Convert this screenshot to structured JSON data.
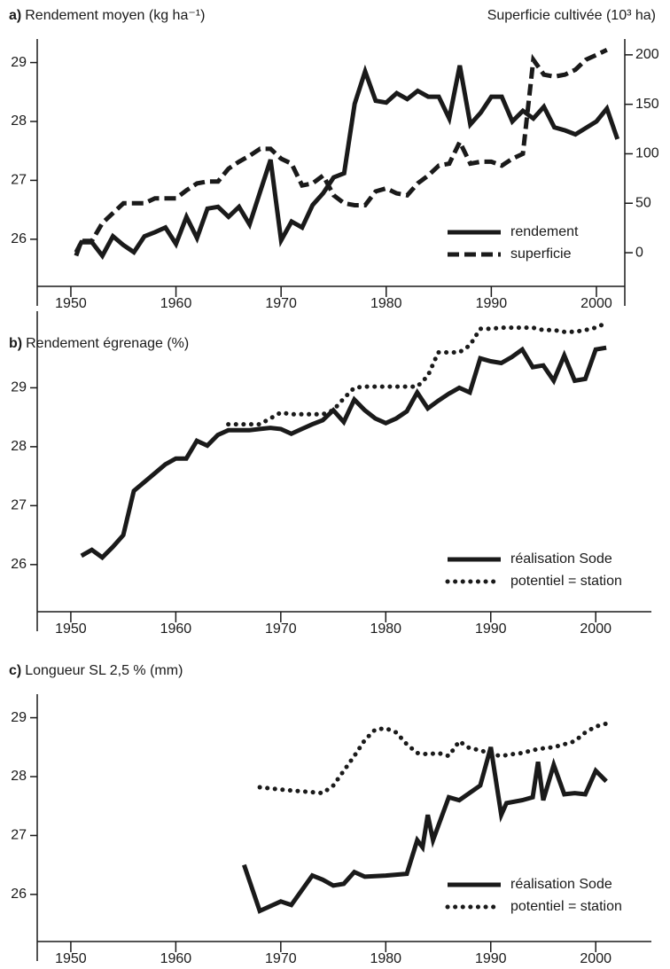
{
  "chart_data": [
    {
      "type": "line",
      "label": "a)",
      "title": "Rendement moyen (kg ha⁻¹)",
      "y2label": "Superficie cultivée (10³ ha)",
      "xlim": [
        1946.8,
        2002.7
      ],
      "xticks": [
        1950,
        1960,
        1970,
        1980,
        1990,
        2000
      ],
      "ylim": [
        25.2,
        29.4
      ],
      "yticks": [
        26,
        27,
        28,
        29
      ],
      "y2lim": [
        -34,
        216
      ],
      "y2ticks": [
        0,
        50,
        100,
        150,
        200
      ],
      "series": [
        {
          "name": "rendement",
          "color": "#1a1a1a",
          "style": "solid",
          "x": [
            1950.5,
            1951,
            1952,
            1953,
            1954,
            1955,
            1956,
            1957,
            1958,
            1959,
            1960,
            1961,
            1962,
            1963,
            1964,
            1965,
            1966,
            1967,
            1968,
            1969,
            1970,
            1971,
            1972,
            1973,
            1974,
            1975,
            1976,
            1977,
            1978,
            1979,
            1980,
            1981,
            1982,
            1983,
            1984,
            1985,
            1986,
            1987,
            1988,
            1989,
            1990,
            1991,
            1992,
            1993,
            1994,
            1995,
            1996,
            1997,
            1998,
            2000,
            2001,
            2002
          ],
          "values": [
            25.78,
            25.95,
            25.95,
            25.72,
            26.05,
            25.9,
            25.78,
            26.05,
            26.12,
            26.2,
            25.92,
            26.38,
            26.02,
            26.52,
            26.55,
            26.38,
            26.55,
            26.25,
            26.8,
            27.35,
            25.98,
            26.3,
            26.2,
            26.58,
            26.78,
            27.05,
            27.12,
            28.3,
            28.85,
            28.35,
            28.32,
            28.48,
            28.38,
            28.52,
            28.42,
            28.42,
            28.05,
            28.95,
            27.95,
            28.15,
            28.42,
            28.42,
            28.0,
            28.18,
            28.05,
            28.25,
            27.9,
            27.85,
            27.78,
            28.0,
            28.22,
            27.7
          ]
        },
        {
          "name": "superficie",
          "color": "#1a1a1a",
          "style": "dashed",
          "axis": "y2",
          "x": [
            1950.5,
            1951,
            1952,
            1953,
            1954,
            1955,
            1956,
            1957,
            1958,
            1959,
            1960,
            1961,
            1962,
            1963,
            1964,
            1965,
            1966,
            1967,
            1968,
            1969,
            1970,
            1971,
            1972,
            1973,
            1974,
            1975,
            1976,
            1977,
            1978,
            1979,
            1980,
            1981,
            1982,
            1983,
            1984,
            1985,
            1986,
            1987,
            1988,
            1989,
            1990,
            1991,
            1992,
            1993,
            1994,
            1995,
            1996,
            1997,
            1998,
            1999,
            2000,
            2001
          ],
          "values": [
            -3,
            12,
            12,
            30,
            40,
            50,
            50,
            50,
            55,
            55,
            55,
            63,
            70,
            72,
            72,
            85,
            92,
            98,
            105,
            105,
            95,
            90,
            68,
            70,
            78,
            58,
            50,
            48,
            48,
            62,
            65,
            60,
            58,
            70,
            78,
            88,
            90,
            112,
            90,
            92,
            92,
            88,
            95,
            100,
            195,
            180,
            178,
            180,
            185,
            195,
            200,
            205
          ]
        }
      ]
    },
    {
      "type": "line",
      "label": "b)",
      "title": "Rendement égrenage (%)",
      "xlim": [
        1946.8,
        2005.3
      ],
      "xticks": [
        1950,
        1960,
        1970,
        1980,
        1990,
        2000
      ],
      "ylim": [
        25.2,
        30.3
      ],
      "yticks": [
        26,
        27,
        28,
        29
      ],
      "series": [
        {
          "name": "réalisation Sode",
          "color": "#1a1a1a",
          "style": "solid",
          "x": [
            1951,
            1952,
            1953,
            1954,
            1955,
            1956,
            1957,
            1958,
            1959,
            1960,
            1961,
            1962,
            1963,
            1964,
            1965,
            1966,
            1967,
            1968,
            1969,
            1970,
            1971,
            1972,
            1973,
            1974,
            1975,
            1976,
            1977,
            1978,
            1979,
            1980,
            1981,
            1982,
            1983,
            1984,
            1985,
            1986,
            1987,
            1988,
            1989,
            1990,
            1991,
            1992,
            1993,
            1994,
            1995,
            1996,
            1997,
            1998,
            1999,
            2000,
            2001
          ],
          "values": [
            26.15,
            26.25,
            26.12,
            26.3,
            26.5,
            27.25,
            27.4,
            27.55,
            27.7,
            27.8,
            27.8,
            28.1,
            28.02,
            28.2,
            28.28,
            28.28,
            28.28,
            28.3,
            28.32,
            28.3,
            28.22,
            28.3,
            28.38,
            28.45,
            28.62,
            28.42,
            28.8,
            28.62,
            28.48,
            28.4,
            28.48,
            28.6,
            28.92,
            28.65,
            28.78,
            28.9,
            29.0,
            28.92,
            29.5,
            29.45,
            29.42,
            29.52,
            29.65,
            29.35,
            29.38,
            29.12,
            29.55,
            29.12,
            29.15,
            29.65,
            29.68
          ]
        },
        {
          "name": "potentiel = station",
          "color": "#1a1a1a",
          "style": "dotted",
          "x": [
            1965,
            1966,
            1967,
            1968,
            1969,
            1970,
            1971,
            1972,
            1973,
            1974,
            1975,
            1976,
            1977,
            1978,
            1979,
            1980,
            1981,
            1982,
            1983,
            1984,
            1985,
            1986,
            1987,
            1988,
            1989,
            1990,
            1991,
            1992,
            1993,
            1994,
            1995,
            1996,
            1997,
            1998,
            1999,
            2000,
            2001
          ],
          "values": [
            28.38,
            28.38,
            28.38,
            28.38,
            28.48,
            28.58,
            28.55,
            28.55,
            28.55,
            28.55,
            28.62,
            28.82,
            29.0,
            29.02,
            29.02,
            29.02,
            29.02,
            29.02,
            29.02,
            29.2,
            29.6,
            29.6,
            29.6,
            29.72,
            30.0,
            30.0,
            30.02,
            30.02,
            30.02,
            30.02,
            29.98,
            29.98,
            29.95,
            29.95,
            29.98,
            30.02,
            30.1
          ]
        }
      ]
    },
    {
      "type": "line",
      "label": "c)",
      "title": "Longueur SL 2,5 % (mm)",
      "xlim": [
        1946.8,
        2005.3
      ],
      "xticks": [
        1950,
        1960,
        1970,
        1980,
        1990,
        2000
      ],
      "ylim": [
        25.2,
        29.4
      ],
      "yticks": [
        26,
        27,
        28,
        29
      ],
      "series": [
        {
          "name": "réalisation Sode",
          "color": "#1a1a1a",
          "style": "solid",
          "x": [
            1966.5,
            1968,
            1970,
            1971,
            1973,
            1974,
            1975,
            1976,
            1977,
            1978,
            1980,
            1982,
            1983,
            1983.5,
            1984,
            1984.5,
            1986,
            1987,
            1989,
            1990,
            1991,
            1991.5,
            1993,
            1994,
            1994.5,
            1995,
            1996,
            1997,
            1998,
            1999,
            2000,
            2001
          ],
          "values": [
            26.5,
            25.72,
            25.88,
            25.82,
            26.32,
            26.25,
            26.15,
            26.18,
            26.38,
            26.3,
            26.32,
            26.35,
            26.92,
            26.8,
            27.35,
            26.92,
            27.65,
            27.6,
            27.85,
            28.5,
            27.35,
            27.55,
            27.6,
            27.65,
            28.25,
            27.6,
            28.2,
            27.7,
            27.72,
            27.7,
            28.1,
            27.92
          ]
        },
        {
          "name": "potentiel = station",
          "color": "#1a1a1a",
          "style": "dotted",
          "x": [
            1968,
            1970,
            1972,
            1974,
            1975,
            1976,
            1977,
            1978,
            1979,
            1980,
            1981,
            1982,
            1983,
            1984,
            1985,
            1986,
            1987,
            1988,
            1989,
            1990,
            1991,
            1992,
            1993,
            1994,
            1995,
            1996,
            1997,
            1998,
            1999,
            2000,
            2001
          ],
          "values": [
            27.82,
            27.78,
            27.75,
            27.72,
            27.85,
            28.1,
            28.35,
            28.62,
            28.8,
            28.82,
            28.75,
            28.55,
            28.4,
            28.38,
            28.4,
            28.35,
            28.6,
            28.48,
            28.45,
            28.38,
            28.35,
            28.38,
            28.4,
            28.45,
            28.48,
            28.5,
            28.55,
            28.6,
            28.75,
            28.85,
            28.9
          ]
        }
      ]
    }
  ]
}
